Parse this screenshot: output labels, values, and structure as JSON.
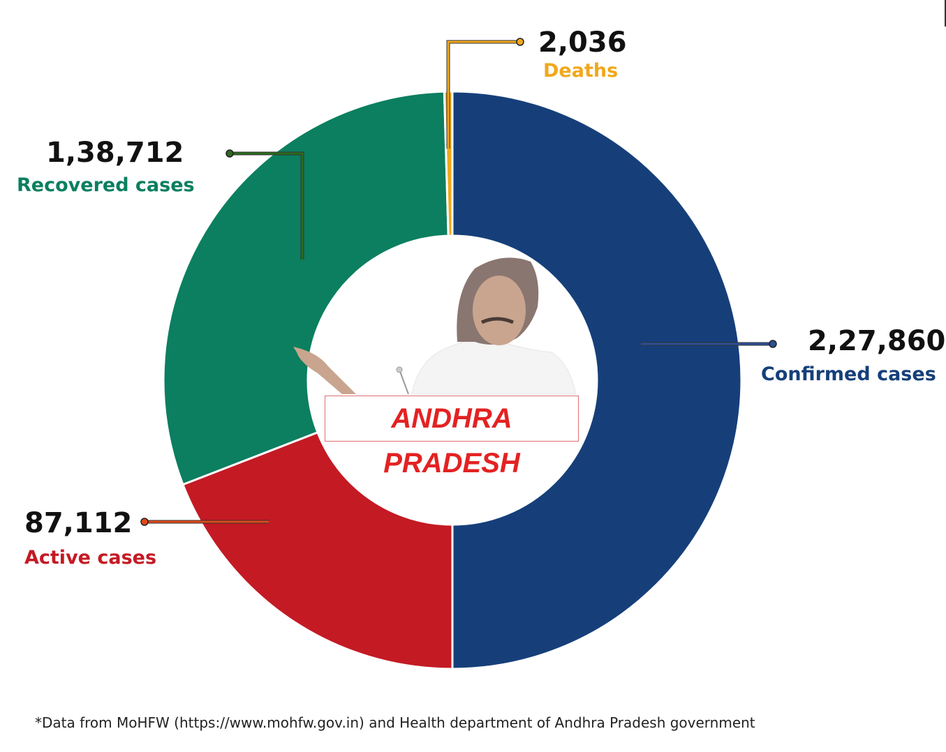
{
  "chart_data": {
    "type": "pie",
    "variant": "donut",
    "center_label": "ANDHRA PRADESH",
    "slices": [
      {
        "name": "Confirmed cases",
        "value": 227860,
        "display": "2,27,860",
        "color": "#163f7a"
      },
      {
        "name": "Active cases",
        "value": 87112,
        "display": "87,112",
        "color": "#c41a24"
      },
      {
        "name": "Recovered cases",
        "value": 138712,
        "display": "1,38,712",
        "color": "#0b7f5f"
      },
      {
        "name": "Deaths",
        "value": 2036,
        "display": "2,036",
        "color": "#f0a81c"
      }
    ],
    "label_colors": {
      "Confirmed cases": "#163f7a",
      "Active cases": "#c41a24",
      "Recovered cases": "#0b7f5f",
      "Deaths": "#f0a81c"
    },
    "footnote": "*Data from MoHFW (https://www.mohfw.gov.in) and Health department of Andhra Pradesh government"
  }
}
